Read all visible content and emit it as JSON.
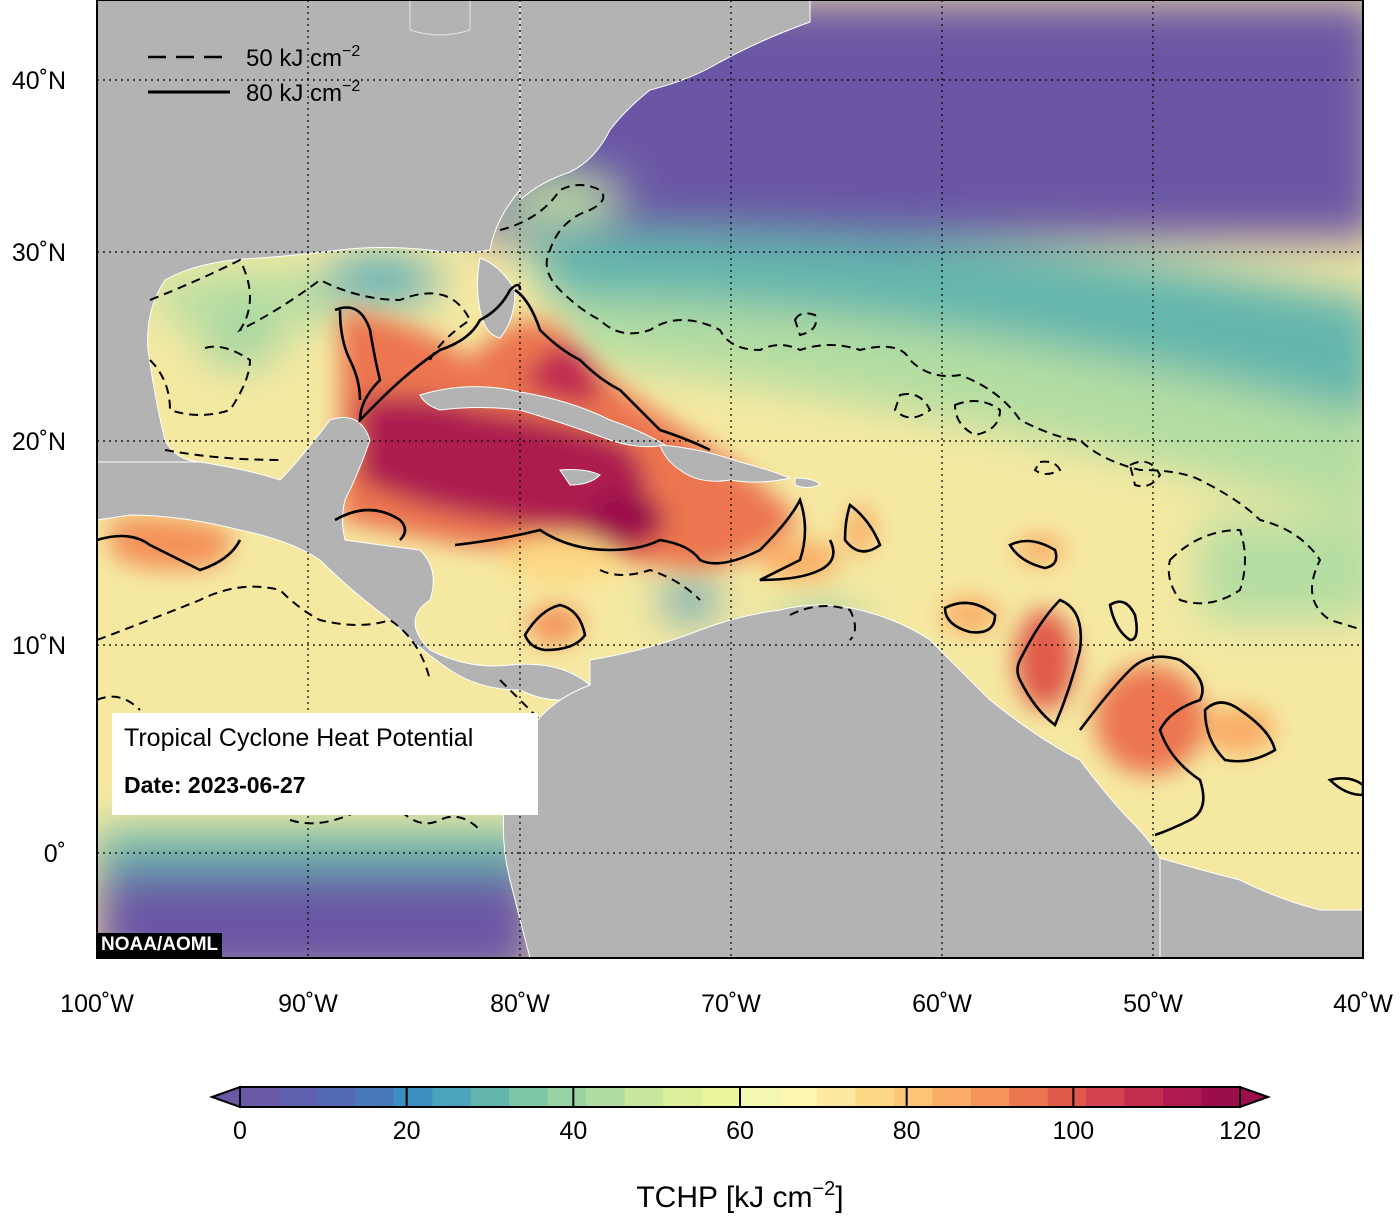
{
  "map": {
    "lon_range": [
      -100,
      -40
    ],
    "lat_range": [
      -5,
      44
    ],
    "graticule": "dotted",
    "lon_ticks": [
      {
        "lon": -100,
        "label": "100˚W"
      },
      {
        "lon": -90,
        "label": "90˚W"
      },
      {
        "lon": -80,
        "label": "80˚W"
      },
      {
        "lon": -70,
        "label": "70˚W"
      },
      {
        "lon": -60,
        "label": "60˚W"
      },
      {
        "lon": -50,
        "label": "50˚W"
      },
      {
        "lon": -40,
        "label": "40˚W"
      }
    ],
    "lat_ticks": [
      {
        "lat": 40,
        "label": "40˚N"
      },
      {
        "lat": 30,
        "label": "30˚N"
      },
      {
        "lat": 20,
        "label": "20˚N"
      },
      {
        "lat": 10,
        "label": "10˚N"
      },
      {
        "lat": 0,
        "label": "0˚"
      }
    ],
    "land_color": "#b3b3b3",
    "frame_color": "#000000"
  },
  "legend": {
    "dashed": "50 kJ cm",
    "solid": "80 kJ cm",
    "exponent": "−2",
    "position": "top-left"
  },
  "info": {
    "title": "Tropical Cyclone Heat Potential",
    "date": "Date: 2023-06-27"
  },
  "credit": "NOAA/AOML",
  "colorbar": {
    "title": "TCHP [kJ cm",
    "title_exponent": "−2",
    "title_close": "]",
    "range": [
      0,
      120
    ],
    "ticks": [
      "0",
      "20",
      "40",
      "60",
      "80",
      "100",
      "120"
    ],
    "colors": [
      "#6a57a5",
      "#5e5fad",
      "#5368b3",
      "#4778b8",
      "#3b8fc0",
      "#4aa5bc",
      "#63b6ad",
      "#7ec6a4",
      "#99d2a3",
      "#b2dda2",
      "#c9e79f",
      "#dcef9b",
      "#eaf59e",
      "#f4f7b2",
      "#fbf6b2",
      "#fde9a0",
      "#fdd985",
      "#fcc574",
      "#f9ad66",
      "#f4935a",
      "#ec7650",
      "#e05a4a",
      "#d2434f",
      "#c12c4f",
      "#ad1a4f",
      "#9b0e4b"
    ]
  },
  "contour_levels": [
    {
      "value": 50,
      "style": "dashed"
    },
    {
      "value": 80,
      "style": "solid"
    }
  ]
}
